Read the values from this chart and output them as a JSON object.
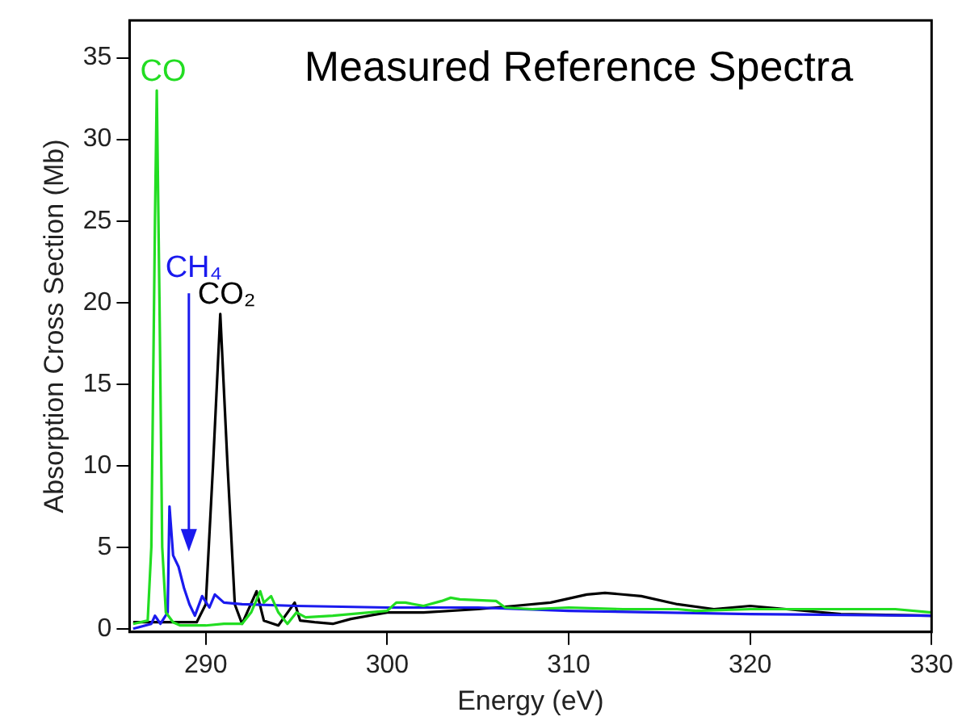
{
  "chart_data": {
    "type": "line",
    "title": "Measured Reference Spectra",
    "xlabel": "Energy (eV)",
    "ylabel": "Absorption Cross Section (Mb)",
    "xlim": [
      285.8,
      330
    ],
    "xticks": [
      290,
      300,
      310,
      320,
      330
    ],
    "ylim": [
      -0.2,
      37.3
    ],
    "yticks": [
      0,
      5,
      10,
      15,
      20,
      25,
      30,
      35
    ],
    "grid": false,
    "legend": false,
    "marker": "none",
    "line_style": "solid",
    "series": [
      {
        "name": "CO",
        "color": "#22dd22",
        "x": [
          286,
          286.8,
          287.0,
          287.2,
          287.3,
          287.45,
          287.6,
          287.8,
          288.2,
          288.6,
          290,
          291,
          292,
          292.5,
          293.0,
          293.2,
          293.6,
          294,
          294.5,
          295,
          295.5,
          297,
          299,
          300,
          300.5,
          301,
          302,
          303,
          303.5,
          304,
          306,
          306.5,
          308,
          310,
          313,
          316,
          317,
          320,
          325,
          328,
          330
        ],
        "values": [
          0.3,
          0.5,
          5,
          25,
          33,
          20,
          5,
          1,
          0.4,
          0.2,
          0.2,
          0.3,
          0.3,
          1,
          2.3,
          1.6,
          2.0,
          1,
          0.3,
          1.0,
          0.7,
          0.8,
          1.0,
          1.1,
          1.6,
          1.6,
          1.4,
          1.7,
          1.9,
          1.8,
          1.7,
          1.3,
          1.2,
          1.3,
          1.2,
          1.2,
          1.1,
          1.2,
          1.2,
          1.2,
          1.0
        ]
      },
      {
        "name": "CH₄",
        "color": "#1a1aee",
        "x": [
          286,
          287,
          287.2,
          287.5,
          287.9,
          288.0,
          288.2,
          288.5,
          288.8,
          289.1,
          289.4,
          289.8,
          290.2,
          290.5,
          291,
          292,
          295,
          300,
          305,
          310,
          320,
          330
        ],
        "values": [
          0.0,
          0.3,
          0.8,
          0.3,
          1.0,
          7.5,
          4.5,
          3.8,
          2.5,
          1.5,
          0.8,
          2.0,
          1.3,
          2.1,
          1.6,
          1.5,
          1.4,
          1.3,
          1.3,
          1.1,
          0.9,
          0.8
        ]
      },
      {
        "name": "CO₂",
        "color": "#000000",
        "x": [
          286,
          289.5,
          290,
          290.4,
          290.8,
          291.2,
          291.6,
          292,
          292.8,
          293.2,
          294,
          294.9,
          295.2,
          296,
          297,
          298,
          300,
          302,
          305,
          307,
          309,
          311,
          312,
          314,
          316,
          318,
          320,
          325,
          330
        ],
        "values": [
          0.4,
          0.4,
          1.5,
          10,
          19.3,
          10,
          1.5,
          0.3,
          2.3,
          0.5,
          0.2,
          1.6,
          0.5,
          0.4,
          0.3,
          0.6,
          1.0,
          1.0,
          1.2,
          1.4,
          1.6,
          2.1,
          2.2,
          2.0,
          1.5,
          1.2,
          1.4,
          0.9,
          0.8
        ]
      }
    ]
  }
}
